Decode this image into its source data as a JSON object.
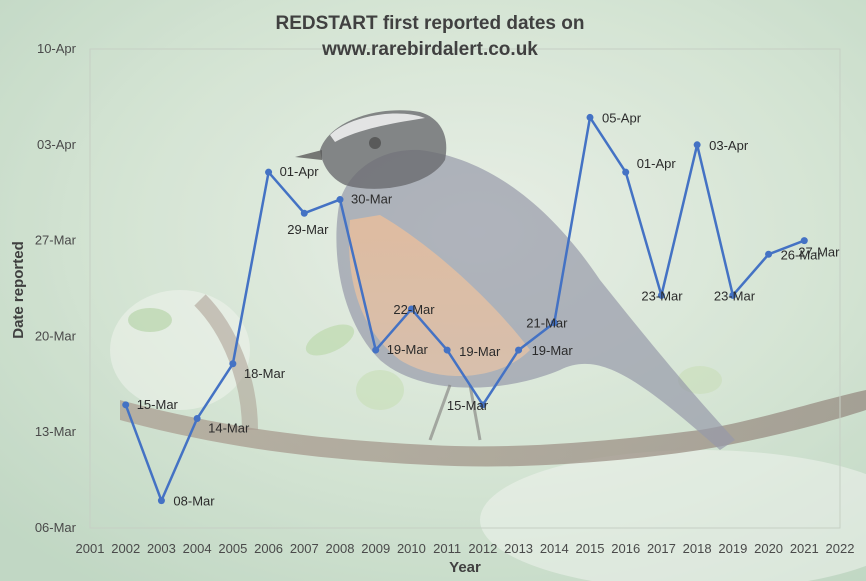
{
  "chart_data": {
    "type": "line",
    "title_lines": [
      "REDSTART first reported dates on",
      "www.rarebirdalert.co.uk"
    ],
    "xlabel": "Year",
    "ylabel": "Date reported",
    "x_ticks": [
      "2001",
      "2002",
      "2003",
      "2004",
      "2005",
      "2006",
      "2007",
      "2008",
      "2009",
      "2010",
      "2011",
      "2012",
      "2013",
      "2014",
      "2015",
      "2016",
      "2017",
      "2018",
      "2019",
      "2020",
      "2021",
      "2022"
    ],
    "xlim": [
      2001,
      2022
    ],
    "y_ticks": [
      "06-Mar",
      "13-Mar",
      "20-Mar",
      "27-Mar",
      "03-Apr",
      "10-Apr"
    ],
    "ylim": [
      "06-Mar",
      "10-Apr"
    ],
    "grid": false,
    "legend": "none",
    "series": [
      {
        "color": "#4472c4",
        "points": [
          {
            "x": 2002,
            "y": "15-Mar",
            "label": "15-Mar"
          },
          {
            "x": 2003,
            "y": "08-Mar",
            "label": "08-Mar"
          },
          {
            "x": 2004,
            "y": "14-Mar",
            "label": "14-Mar"
          },
          {
            "x": 2005,
            "y": "18-Mar",
            "label": "18-Mar"
          },
          {
            "x": 2006,
            "y": "01-Apr",
            "label": "01-Apr"
          },
          {
            "x": 2007,
            "y": "29-Mar",
            "label": "29-Mar"
          },
          {
            "x": 2008,
            "y": "30-Mar",
            "label": "30-Mar"
          },
          {
            "x": 2009,
            "y": "19-Mar",
            "label": "19-Mar"
          },
          {
            "x": 2010,
            "y": "22-Mar",
            "label": "22-Mar"
          },
          {
            "x": 2011,
            "y": "19-Mar",
            "label": "19-Mar"
          },
          {
            "x": 2012,
            "y": "15-Mar",
            "label": "15-Mar"
          },
          {
            "x": 2013,
            "y": "19-Mar",
            "label": "19-Mar"
          },
          {
            "x": 2014,
            "y": "21-Mar",
            "label": "21-Mar"
          },
          {
            "x": 2015,
            "y": "05-Apr",
            "label": "05-Apr"
          },
          {
            "x": 2016,
            "y": "01-Apr",
            "label": "01-Apr"
          },
          {
            "x": 2017,
            "y": "23-Mar",
            "label": "23-Mar"
          },
          {
            "x": 2018,
            "y": "03-Apr",
            "label": "03-Apr"
          },
          {
            "x": 2019,
            "y": "23-Mar",
            "label": "23-Mar"
          },
          {
            "x": 2020,
            "y": "26-Mar",
            "label": "26-Mar"
          },
          {
            "x": 2021,
            "y": "27-Mar",
            "label": "27-Mar"
          }
        ]
      }
    ]
  },
  "background": {
    "photo_subject": "redstart-bird-on-branch",
    "colors": {
      "bg_green": "#b9d4b8",
      "branch": "#6e5a4a",
      "bird_breast": "#d79a64",
      "bird_back": "#6d7186",
      "bird_head": "#2c2c32"
    }
  }
}
